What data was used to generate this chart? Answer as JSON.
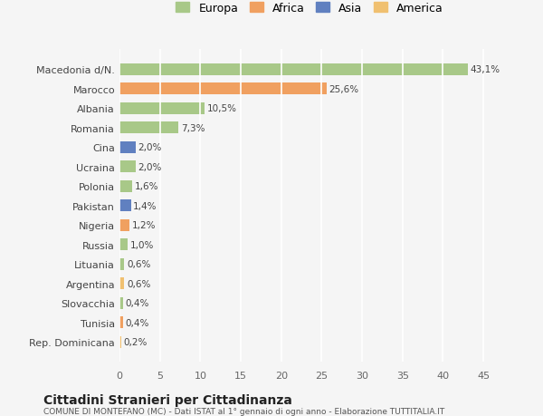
{
  "categories": [
    "Rep. Dominicana",
    "Tunisia",
    "Slovacchia",
    "Argentina",
    "Lituania",
    "Russia",
    "Nigeria",
    "Pakistan",
    "Polonia",
    "Ucraina",
    "Cina",
    "Romania",
    "Albania",
    "Marocco",
    "Macedonia d/N."
  ],
  "values": [
    0.2,
    0.4,
    0.4,
    0.6,
    0.6,
    1.0,
    1.2,
    1.4,
    1.6,
    2.0,
    2.0,
    7.3,
    10.5,
    25.6,
    43.1
  ],
  "labels": [
    "0,2%",
    "0,4%",
    "0,4%",
    "0,6%",
    "0,6%",
    "1,0%",
    "1,2%",
    "1,4%",
    "1,6%",
    "2,0%",
    "2,0%",
    "7,3%",
    "10,5%",
    "25,6%",
    "43,1%"
  ],
  "colors": [
    "#f0c070",
    "#f0a060",
    "#a8c888",
    "#f0c070",
    "#a8c888",
    "#a8c888",
    "#f0a060",
    "#6080c0",
    "#a8c888",
    "#a8c888",
    "#6080c0",
    "#a8c888",
    "#a8c888",
    "#f0a060",
    "#a8c888"
  ],
  "continent": [
    "America",
    "Africa",
    "Europa",
    "America",
    "Europa",
    "Europa",
    "Africa",
    "Asia",
    "Europa",
    "Europa",
    "Asia",
    "Europa",
    "Europa",
    "Africa",
    "Europa"
  ],
  "legend_labels": [
    "Europa",
    "Africa",
    "Asia",
    "America"
  ],
  "legend_colors": [
    "#a8c888",
    "#f0a060",
    "#6080c0",
    "#f0c070"
  ],
  "xlim": [
    0,
    47
  ],
  "xticks": [
    0,
    5,
    10,
    15,
    20,
    25,
    30,
    35,
    40,
    45
  ],
  "title_main": "Cittadini Stranieri per Cittadinanza",
  "title_sub": "COMUNE DI MONTEFANO (MC) - Dati ISTAT al 1° gennaio di ogni anno - Elaborazione TUTTITALIA.IT",
  "bg_color": "#f5f5f5",
  "grid_color": "#ffffff",
  "bar_height": 0.6
}
